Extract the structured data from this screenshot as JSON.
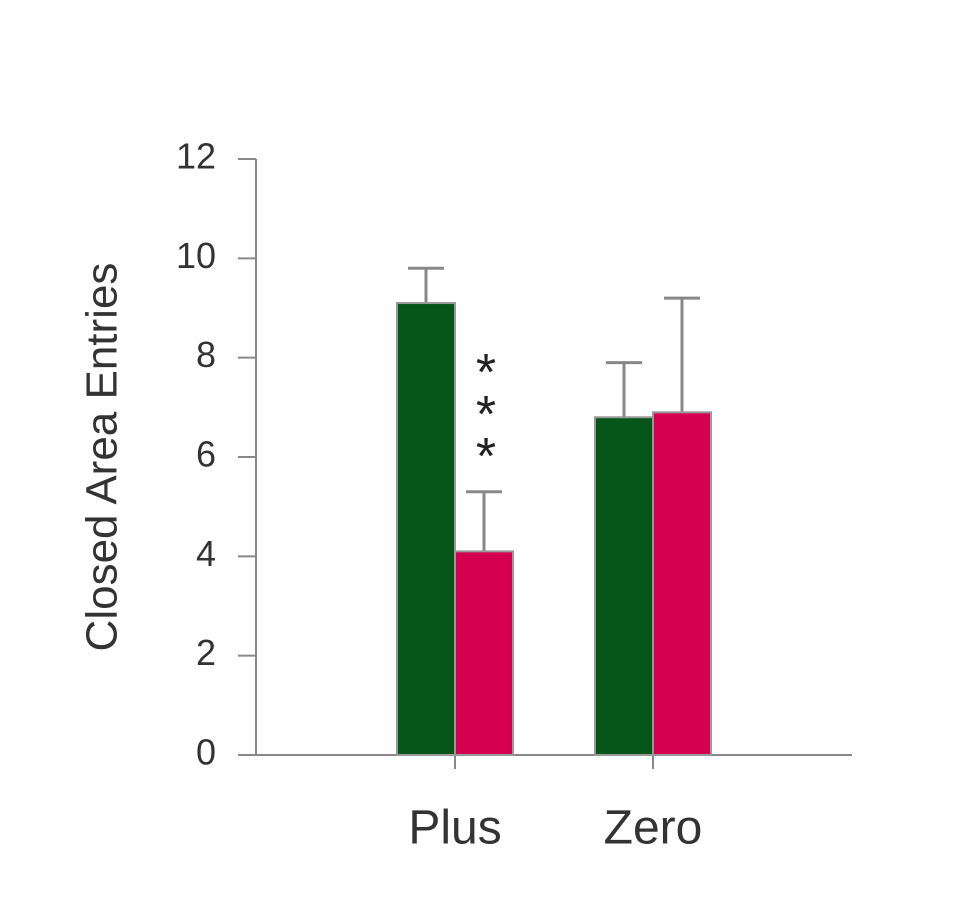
{
  "chart_data": {
    "type": "bar",
    "y_label": "Closed Area Entries",
    "categories": [
      "Plus",
      "Zero"
    ],
    "series": [
      {
        "color": "#06561a",
        "values": [
          9.1,
          6.8
        ],
        "errors": [
          0.7,
          1.1
        ]
      },
      {
        "color": "#d4004f",
        "values": [
          4.1,
          6.9
        ],
        "errors": [
          1.2,
          2.3
        ]
      }
    ],
    "annotations": [
      "***"
    ],
    "ylim": [
      0,
      12
    ],
    "yticks": [
      0,
      2,
      4,
      6,
      8,
      10,
      12
    ]
  }
}
